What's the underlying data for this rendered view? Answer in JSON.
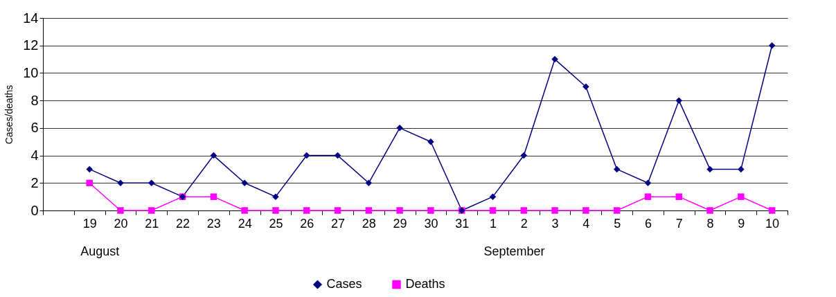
{
  "chart_data": {
    "type": "line",
    "ylabel": "Cases/deaths",
    "categories": [
      null,
      "19",
      "20",
      "21",
      "22",
      "23",
      "24",
      "25",
      "26",
      "27",
      "28",
      "29",
      "30",
      "31",
      "1",
      "2",
      "3",
      "4",
      "5",
      "6",
      "7",
      "8",
      "9",
      "10"
    ],
    "series": [
      {
        "name": "Cases",
        "color": "#000080",
        "marker": "diamond",
        "values": [
          null,
          3,
          2,
          2,
          1,
          4,
          2,
          1,
          4,
          4,
          2,
          6,
          5,
          0,
          1,
          4,
          11,
          9,
          3,
          2,
          8,
          3,
          3,
          12
        ]
      },
      {
        "name": "Deaths",
        "color": "#ff00ff",
        "marker": "square",
        "values": [
          null,
          2,
          0,
          0,
          1,
          1,
          0,
          0,
          0,
          0,
          0,
          0,
          0,
          0,
          0,
          0,
          0,
          0,
          0,
          1,
          1,
          0,
          1,
          0
        ]
      }
    ],
    "ylim": [
      0,
      14
    ],
    "yticks": [
      0,
      2,
      4,
      6,
      8,
      10,
      12,
      14
    ],
    "grid": "y",
    "legend": "bottom",
    "annotations": [
      "August",
      "September"
    ]
  }
}
